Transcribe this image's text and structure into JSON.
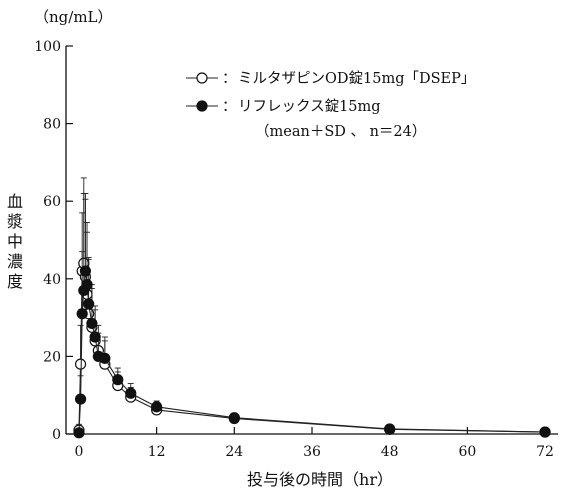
{
  "chart_data": {
    "type": "line",
    "y_unit": "（ng/mL）",
    "xlabel": "投与後の時間（hr）",
    "ylabel": "血漿中濃度",
    "xlim": [
      -2,
      74
    ],
    "ylim": [
      0,
      100
    ],
    "x_ticks": [
      0,
      12,
      24,
      36,
      48,
      60,
      72
    ],
    "y_ticks": [
      0,
      20,
      40,
      60,
      80,
      100
    ],
    "x_tick_labels": [
      "0",
      "12",
      "24",
      "36",
      "48",
      "60",
      "72"
    ],
    "y_tick_labels": [
      "0",
      "20",
      "40",
      "60",
      "80",
      "100"
    ],
    "grid": false,
    "legend_position": "top-right",
    "legend_note": "（mean＋SD 、 n＝24）",
    "series": [
      {
        "name": "ミルタザピンOD錠15mg「DSEP」",
        "marker": "open-circle",
        "x": [
          0,
          0.25,
          0.5,
          0.75,
          1.0,
          1.25,
          1.5,
          2.0,
          2.5,
          3.0,
          4.0,
          6.0,
          8.0,
          12.0,
          24.0,
          48.0,
          72.0
        ],
        "y": [
          1.0,
          18.0,
          42.0,
          44.0,
          40.5,
          36.0,
          31.0,
          27.5,
          24.0,
          21.5,
          18.0,
          12.5,
          9.5,
          6.2,
          4.0,
          1.2,
          0.5
        ],
        "sd": [
          1.5,
          10.0,
          15.0,
          22.0,
          20.0,
          16.0,
          14.0,
          10.0,
          8.0,
          6.5,
          6.0,
          3.5,
          2.5,
          1.5,
          1.0,
          0.4,
          0.2
        ]
      },
      {
        "name": "リフレックス錠15mg",
        "marker": "filled-circle",
        "x": [
          0,
          0.25,
          0.5,
          0.75,
          1.0,
          1.25,
          1.5,
          2.0,
          2.5,
          3.0,
          4.0,
          6.0,
          8.0,
          12.0,
          24.0,
          48.0,
          72.0
        ],
        "y": [
          0.3,
          9.0,
          31.0,
          37.0,
          42.0,
          38.5,
          33.5,
          28.5,
          25.0,
          20.0,
          19.5,
          14.0,
          10.5,
          7.0,
          4.2,
          1.3,
          0.5
        ],
        "sd": [
          0.5,
          6.0,
          16.0,
          25.0,
          20.0,
          16.0,
          12.0,
          10.0,
          8.0,
          6.0,
          5.5,
          3.0,
          2.5,
          1.5,
          1.0,
          0.4,
          0.2
        ]
      }
    ]
  }
}
